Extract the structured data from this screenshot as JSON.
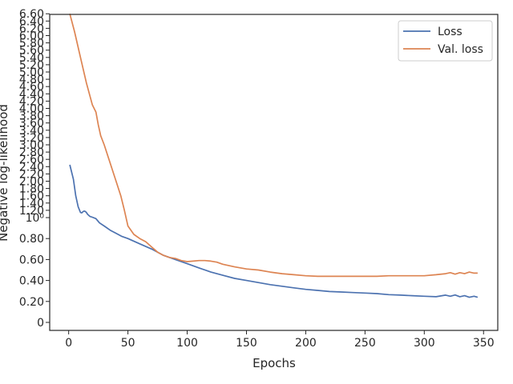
{
  "colors": {
    "loss": "#4c72b0",
    "val_loss": "#dd8452",
    "axes": "#262626",
    "background": "#ffffff"
  },
  "chart_data": {
    "type": "line",
    "title": "",
    "xlabel": "Epochs",
    "ylabel": "Negative log-likelihood",
    "xlim": [
      -16,
      362
    ],
    "ylim": [
      -0.05,
      6.66
    ],
    "y_scale": "symlog (linear below 1, log above 1)",
    "grid": false,
    "legend_position": "top-right",
    "x_ticks": [
      0,
      50,
      100,
      150,
      200,
      250,
      300,
      350
    ],
    "x_tick_labels": [
      "0",
      "50",
      "100",
      "150",
      "200",
      "250",
      "300",
      "350"
    ],
    "y_ticks": [
      0,
      0.2,
      0.4,
      0.6,
      0.8,
      1.0,
      1.2,
      1.4,
      1.6,
      1.8,
      2.0,
      2.2,
      2.4,
      2.6,
      2.8,
      3.0,
      3.2,
      3.4,
      3.6,
      3.8,
      4.0,
      4.2,
      4.4,
      4.6,
      4.8,
      5.0,
      5.2,
      5.4,
      5.6,
      5.8,
      6.0,
      6.2,
      6.4,
      6.6
    ],
    "y_tick_labels": [
      "0",
      "0.20",
      "0.40",
      "0.60",
      "0.80",
      "10⁰",
      "1.20",
      "1.40",
      "1.60",
      "1.80",
      "2.00",
      "2.20",
      "2.40",
      "2.60",
      "2.80",
      "3.00",
      "3.20",
      "3.40",
      "3.60",
      "3.80",
      "4.00",
      "4.20",
      "4.40",
      "4.60",
      "4.80",
      "5.00",
      "5.20",
      "5.40",
      "5.60",
      "5.80",
      "6.00",
      "6.20",
      "6.40",
      "6.60"
    ],
    "series": [
      {
        "name": "Loss",
        "color": "#4c72b0",
        "points": [
          [
            1,
            2.45
          ],
          [
            4,
            2.05
          ],
          [
            6,
            1.6
          ],
          [
            8,
            1.3
          ],
          [
            10,
            1.14
          ],
          [
            11,
            1.13
          ],
          [
            12,
            1.16
          ],
          [
            13,
            1.18
          ],
          [
            14,
            1.17
          ],
          [
            15,
            1.14
          ],
          [
            16,
            1.09
          ],
          [
            18,
            1.03
          ],
          [
            20,
            1.01
          ],
          [
            23,
            0.99
          ],
          [
            26,
            0.95
          ],
          [
            30,
            0.92
          ],
          [
            35,
            0.88
          ],
          [
            40,
            0.85
          ],
          [
            45,
            0.82
          ],
          [
            50,
            0.8
          ],
          [
            60,
            0.75
          ],
          [
            70,
            0.7
          ],
          [
            80,
            0.64
          ],
          [
            90,
            0.6
          ],
          [
            100,
            0.56
          ],
          [
            110,
            0.52
          ],
          [
            120,
            0.48
          ],
          [
            130,
            0.45
          ],
          [
            140,
            0.42
          ],
          [
            150,
            0.4
          ],
          [
            160,
            0.38
          ],
          [
            170,
            0.36
          ],
          [
            180,
            0.345
          ],
          [
            190,
            0.33
          ],
          [
            200,
            0.315
          ],
          [
            210,
            0.305
          ],
          [
            220,
            0.295
          ],
          [
            230,
            0.29
          ],
          [
            240,
            0.285
          ],
          [
            250,
            0.28
          ],
          [
            260,
            0.275
          ],
          [
            270,
            0.265
          ],
          [
            280,
            0.26
          ],
          [
            290,
            0.255
          ],
          [
            300,
            0.25
          ],
          [
            310,
            0.245
          ],
          [
            318,
            0.26
          ],
          [
            322,
            0.25
          ],
          [
            326,
            0.262
          ],
          [
            330,
            0.245
          ],
          [
            334,
            0.255
          ],
          [
            338,
            0.24
          ],
          [
            342,
            0.25
          ],
          [
            345,
            0.24
          ]
        ]
      },
      {
        "name": "Val. loss",
        "color": "#dd8452",
        "points": [
          [
            1,
            6.6
          ],
          [
            5,
            6.1
          ],
          [
            10,
            5.4
          ],
          [
            15,
            4.7
          ],
          [
            20,
            4.1
          ],
          [
            23,
            3.9
          ],
          [
            25,
            3.55
          ],
          [
            27,
            3.25
          ],
          [
            30,
            3.0
          ],
          [
            35,
            2.5
          ],
          [
            40,
            2.0
          ],
          [
            44,
            1.6
          ],
          [
            47,
            1.2
          ],
          [
            50,
            0.92
          ],
          [
            55,
            0.84
          ],
          [
            60,
            0.8
          ],
          [
            65,
            0.77
          ],
          [
            70,
            0.72
          ],
          [
            75,
            0.67
          ],
          [
            80,
            0.64
          ],
          [
            85,
            0.62
          ],
          [
            90,
            0.61
          ],
          [
            95,
            0.59
          ],
          [
            100,
            0.58
          ],
          [
            105,
            0.585
          ],
          [
            110,
            0.59
          ],
          [
            115,
            0.59
          ],
          [
            120,
            0.585
          ],
          [
            125,
            0.575
          ],
          [
            130,
            0.555
          ],
          [
            140,
            0.53
          ],
          [
            150,
            0.51
          ],
          [
            160,
            0.5
          ],
          [
            170,
            0.48
          ],
          [
            180,
            0.465
          ],
          [
            190,
            0.455
          ],
          [
            200,
            0.445
          ],
          [
            210,
            0.44
          ],
          [
            220,
            0.44
          ],
          [
            230,
            0.44
          ],
          [
            240,
            0.44
          ],
          [
            250,
            0.44
          ],
          [
            260,
            0.44
          ],
          [
            270,
            0.445
          ],
          [
            280,
            0.445
          ],
          [
            290,
            0.445
          ],
          [
            300,
            0.445
          ],
          [
            310,
            0.455
          ],
          [
            318,
            0.465
          ],
          [
            322,
            0.475
          ],
          [
            326,
            0.46
          ],
          [
            330,
            0.475
          ],
          [
            334,
            0.465
          ],
          [
            338,
            0.48
          ],
          [
            342,
            0.47
          ],
          [
            345,
            0.47
          ]
        ]
      }
    ]
  }
}
